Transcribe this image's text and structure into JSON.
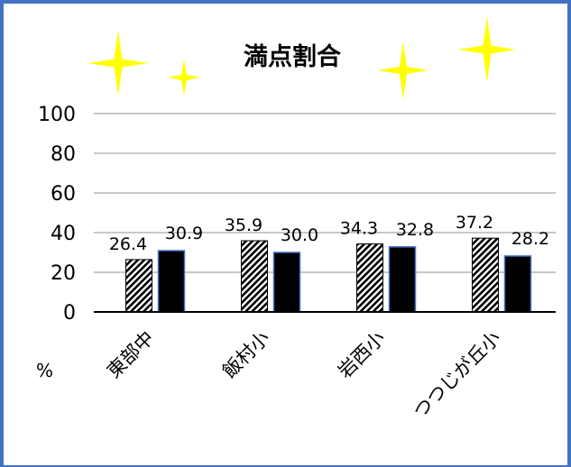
{
  "chart_data": {
    "type": "bar",
    "title": "満点割合",
    "unit_label": "%",
    "categories": [
      "東部中",
      "飯村小",
      "岩西小",
      "つつじが丘小"
    ],
    "series": [
      {
        "values": [
          26.4,
          35.9,
          34.3,
          37.2
        ],
        "pattern": "hatched",
        "color": "#000000"
      },
      {
        "values": [
          30.9,
          30.0,
          32.8,
          28.2
        ],
        "pattern": "solid",
        "color": "#000000",
        "outline": "#4472c4"
      }
    ],
    "data_labels": [
      [
        "26.4",
        "35.9",
        "34.3",
        "37.2"
      ],
      [
        "30.9",
        "30.0",
        "32.8",
        "28.2"
      ]
    ],
    "ylim": [
      0,
      100
    ],
    "yticks": [
      0,
      20,
      40,
      60,
      80,
      100
    ],
    "grid": true,
    "legend": "none",
    "decorations": "yellow-sparkles",
    "sparkle_color": "#ffff00",
    "frame_color": "#4472c4"
  }
}
